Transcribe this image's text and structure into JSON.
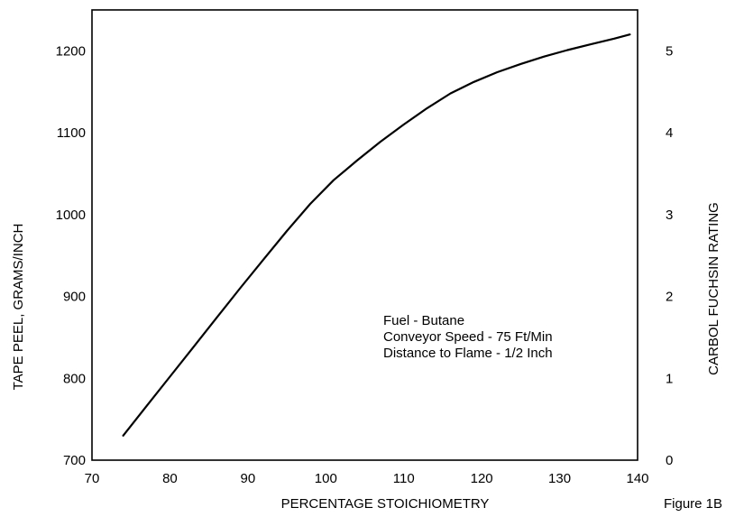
{
  "figure_caption": "Figure 1B",
  "chart_data": {
    "type": "line",
    "title": "",
    "xlabel": "PERCENTAGE STOICHIOMETRY",
    "ylabel": "TAPE PEEL, GRAMS/INCH",
    "y2label": "CARBOL FUCHSIN RATING",
    "xlim": [
      70,
      140
    ],
    "ylim": [
      700,
      1250
    ],
    "y2lim": [
      0,
      5.5
    ],
    "xticks": [
      70,
      80,
      90,
      100,
      110,
      120,
      130,
      140
    ],
    "yticks": [
      700,
      800,
      900,
      1000,
      1100,
      1200
    ],
    "y2ticks": [
      0,
      1,
      2,
      3,
      4,
      5
    ],
    "grid": false,
    "legend": "none",
    "series": [
      {
        "x": [
          74,
          77,
          80,
          83,
          86,
          89,
          92,
          95,
          98,
          101,
          104,
          107,
          110,
          113,
          116,
          119,
          122,
          125,
          128,
          131,
          134,
          137,
          139
        ],
        "y": [
          730,
          766,
          802,
          838,
          874,
          910,
          945,
          980,
          1013,
          1042,
          1066,
          1089,
          1110,
          1130,
          1148,
          1162,
          1174,
          1184,
          1193,
          1201,
          1208,
          1215,
          1220
        ]
      }
    ],
    "annotations": [
      "Fuel - Butane",
      "Conveyor Speed - 75 Ft/Min",
      "Distance to Flame - 1/2 Inch"
    ]
  }
}
